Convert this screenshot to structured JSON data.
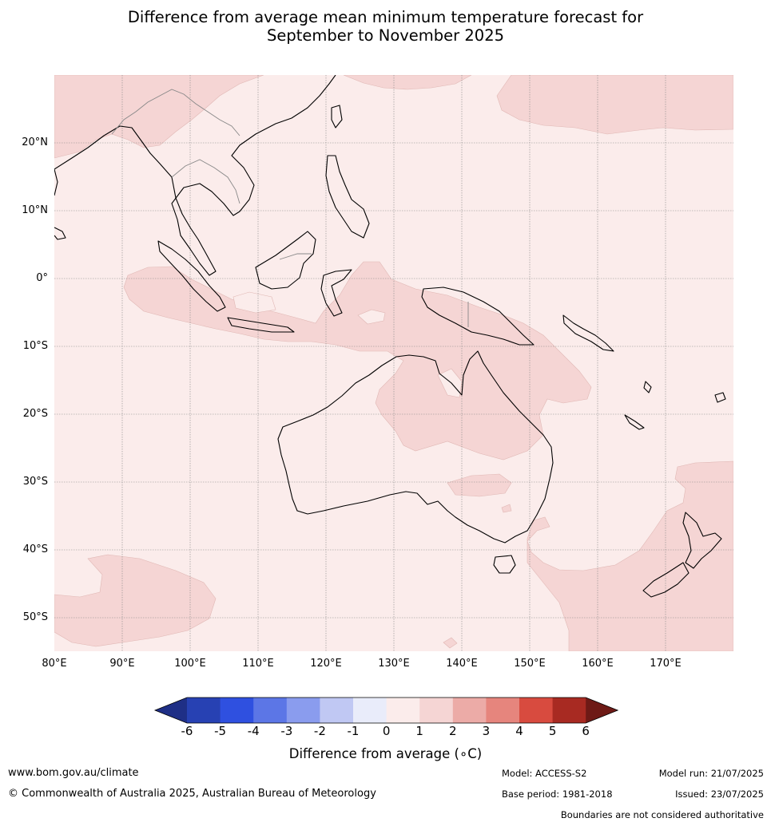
{
  "title_line1": "Difference from average mean minimum temperature forecast for",
  "title_line2": "September to November 2025",
  "lat_labels": [
    "20°N",
    "10°N",
    "0°",
    "10°S",
    "20°S",
    "30°S",
    "40°S",
    "50°S"
  ],
  "lon_labels": [
    "80°E",
    "90°E",
    "100°E",
    "110°E",
    "120°E",
    "130°E",
    "140°E",
    "150°E",
    "160°E",
    "170°E"
  ],
  "colorbar": {
    "title": "Difference from average (∘C)",
    "ticks": [
      "-6",
      "-5",
      "-4",
      "-3",
      "-2",
      "-1",
      "0",
      "1",
      "2",
      "3",
      "4",
      "5",
      "6"
    ],
    "colors": [
      "#1f2f86",
      "#2741b3",
      "#2f50e0",
      "#5c76e6",
      "#8a9cee",
      "#c0c8f3",
      "#e9ecfa",
      "#fbeceb",
      "#f5d5d4",
      "#ecaba7",
      "#e6857d",
      "#d84b3f",
      "#a82a22",
      "#6e1a16"
    ]
  },
  "footer": {
    "website": "www.bom.gov.au/climate",
    "copyright": "© Commonwealth of Australia 2025, Australian Bureau of Meteorology",
    "model": "Model: ACCESS-S2",
    "model_run": "Model run: 21/07/2025",
    "base_period": "Base period: 1981-2018",
    "issued": "Issued: 23/07/2025",
    "disclaimer": "Boundaries are not considered authoritative"
  }
}
